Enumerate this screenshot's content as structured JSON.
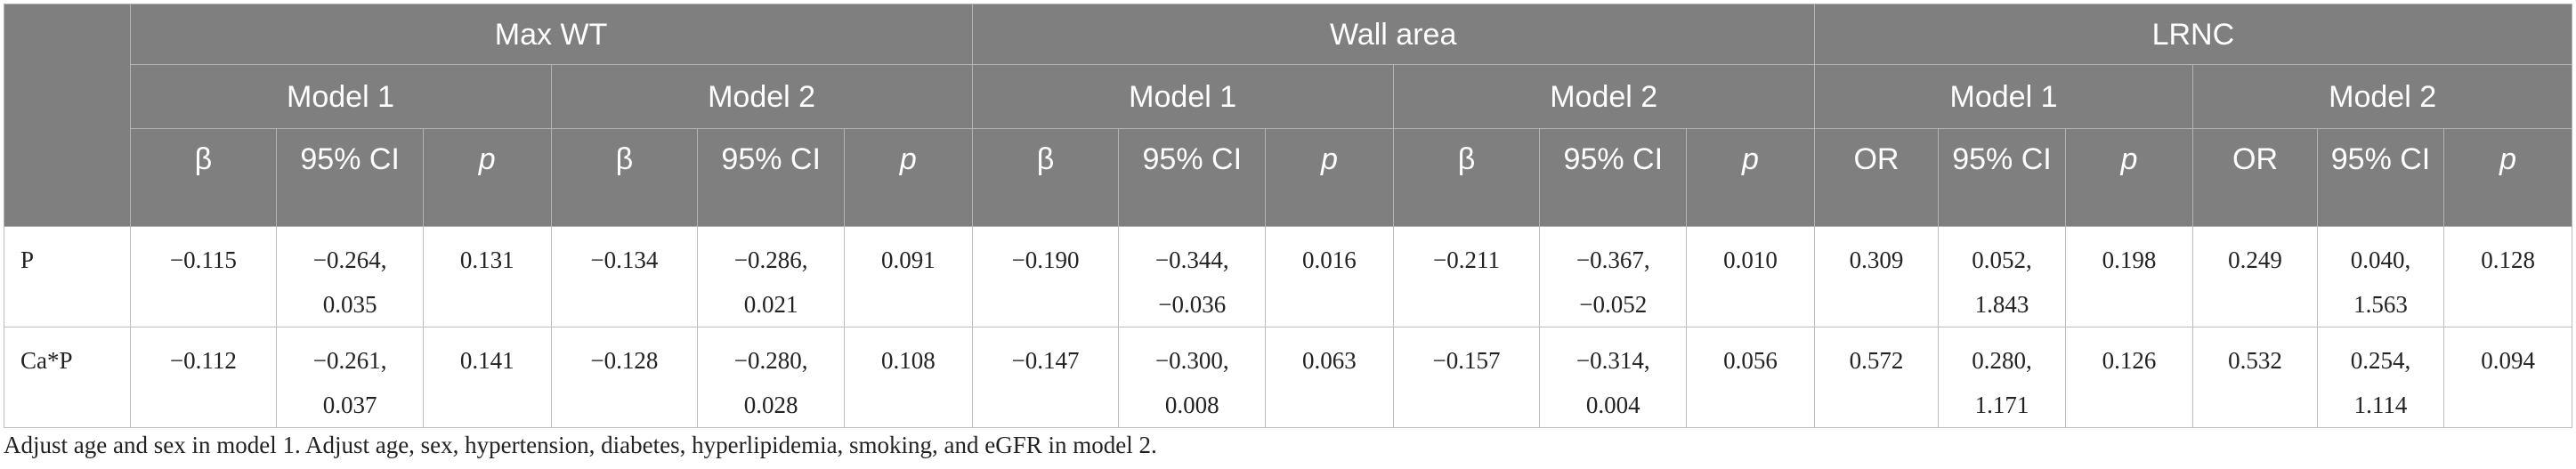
{
  "table": {
    "groups": [
      "Max WT",
      "Wall area",
      "LRNC"
    ],
    "models": [
      "Model 1",
      "Model 2",
      "Model 1",
      "Model 2",
      "Model 1",
      "Model 2"
    ],
    "columns": [
      "β",
      "95% CI",
      "p",
      "β",
      "95% CI",
      "p",
      "β",
      "95% CI",
      "p",
      "β",
      "95% CI",
      "p",
      "OR",
      "95% CI",
      "p",
      "OR",
      "95% CI",
      "p"
    ],
    "rows": [
      {
        "label": "P",
        "cells": [
          "−0.115",
          "−0.264,\n0.035",
          "0.131",
          "−0.134",
          "−0.286,\n0.021",
          "0.091",
          "−0.190",
          "−0.344,\n−0.036",
          "0.016",
          "−0.211",
          "−0.367,\n−0.052",
          "0.010",
          "0.309",
          "0.052,\n1.843",
          "0.198",
          "0.249",
          "0.040,\n1.563",
          "0.128"
        ]
      },
      {
        "label": "Ca*P",
        "cells": [
          "−0.112",
          "−0.261,\n0.037",
          "0.141",
          "−0.128",
          "−0.280,\n0.028",
          "0.108",
          "−0.147",
          "−0.300,\n0.008",
          "0.063",
          "−0.157",
          "−0.314,\n0.004",
          "0.056",
          "0.572",
          "0.280,\n1.171",
          "0.126",
          "0.532",
          "0.254,\n1.114",
          "0.094"
        ]
      }
    ]
  },
  "footnote": "Adjust age and sex in model 1. Adjust age, sex, hypertension, diabetes, hyperlipidemia, smoking, and eGFR in model 2."
}
